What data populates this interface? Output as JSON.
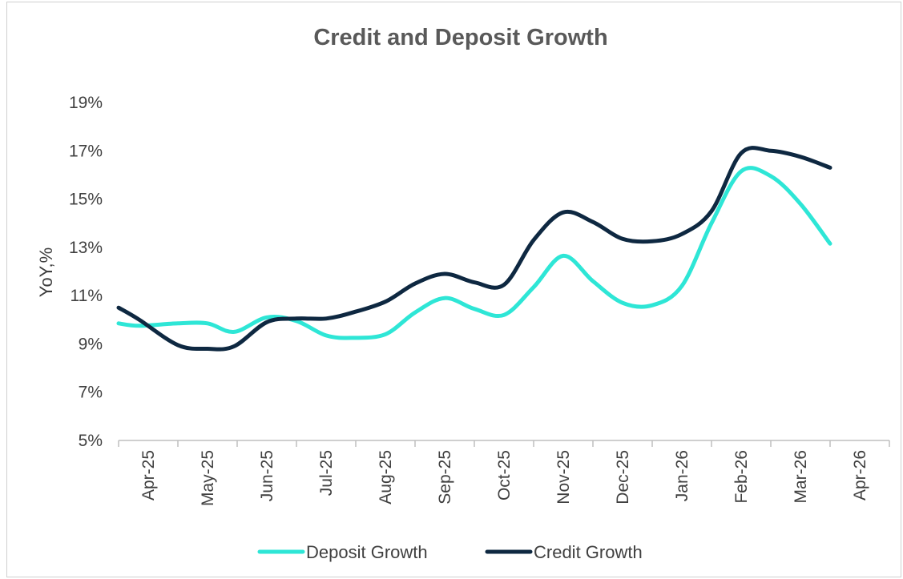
{
  "chart_data": {
    "type": "line",
    "title": "Credit and Deposit Growth",
    "xlabel": "",
    "ylabel": "YoY,%",
    "categories": [
      "Apr-25",
      "May-25",
      "Jun-25",
      "Jul-25",
      "Aug-25",
      "Sep-25",
      "Oct-25",
      "Nov-25",
      "Dec-25",
      "Jan-26",
      "Feb-26",
      "Mar-26",
      "Apr-26"
    ],
    "ylim": [
      5,
      19
    ],
    "yticks": [
      "5%",
      "7%",
      "9%",
      "11%",
      "13%",
      "15%",
      "17%",
      "19%"
    ],
    "yticks_values": [
      5,
      7,
      9,
      11,
      13,
      15,
      17,
      19
    ],
    "grid": false,
    "legend_position": "bottom",
    "series": [
      {
        "name": "Deposit Growth",
        "color": "#2ee6d6",
        "x": [
          -0.5,
          -0.15,
          0.5,
          1,
          1.45,
          2,
          2.5,
          3,
          3.45,
          4,
          4.5,
          5,
          5.5,
          6,
          6.5,
          7,
          7.5,
          8,
          8.5,
          9,
          9.5,
          10,
          10.5,
          11,
          11.5
        ],
        "values": [
          9.85,
          9.75,
          9.85,
          9.85,
          9.5,
          10.1,
          9.95,
          9.35,
          9.25,
          9.4,
          10.3,
          10.9,
          10.45,
          10.2,
          11.35,
          12.65,
          11.6,
          10.7,
          10.6,
          11.4,
          14.0,
          16.15,
          15.95,
          14.8,
          13.15
        ]
      },
      {
        "name": "Credit Growth",
        "color": "#0e2841",
        "x": [
          -0.5,
          -0.15,
          0.5,
          1,
          1.45,
          2,
          2.5,
          3,
          3.45,
          4,
          4.5,
          5,
          5.5,
          6,
          6.5,
          7,
          7.5,
          8,
          8.5,
          9,
          9.5,
          10,
          10.5,
          11,
          11.5
        ],
        "values": [
          10.5,
          10.0,
          8.95,
          8.8,
          8.9,
          9.9,
          10.05,
          10.05,
          10.3,
          10.75,
          11.5,
          11.9,
          11.55,
          11.45,
          13.3,
          14.45,
          14.05,
          13.35,
          13.25,
          13.55,
          14.5,
          16.9,
          17.0,
          16.75,
          16.3
        ]
      }
    ]
  }
}
